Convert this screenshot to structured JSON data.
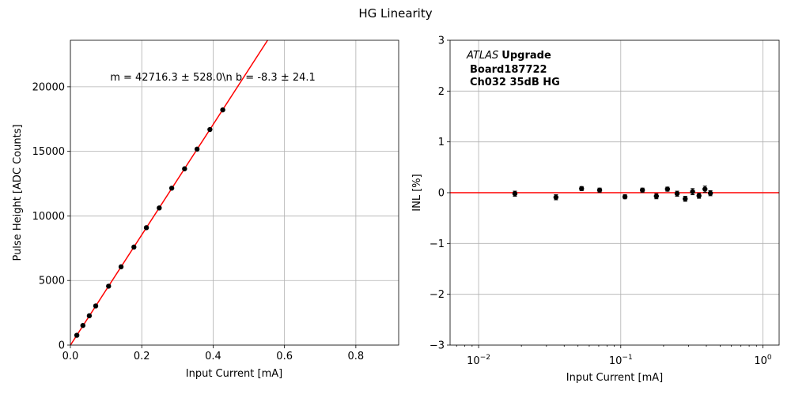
{
  "figure": {
    "title": "HG Linearity"
  },
  "chart_data": [
    {
      "type": "scatter",
      "xlabel": "Input Current [mA]",
      "ylabel": "Pulse Height [ADC Counts]",
      "xlim": [
        0,
        0.92
      ],
      "ylim": [
        0,
        23600
      ],
      "xscale": "linear",
      "grid": true,
      "xticks": [
        {
          "value": 0.0,
          "label": "0.0"
        },
        {
          "value": 0.2,
          "label": "0.2"
        },
        {
          "value": 0.4,
          "label": "0.4"
        },
        {
          "value": 0.6,
          "label": "0.6"
        },
        {
          "value": 0.8,
          "label": "0.8"
        }
      ],
      "yticks": [
        {
          "value": 0,
          "label": "0"
        },
        {
          "value": 5000,
          "label": "5000"
        },
        {
          "value": 10000,
          "label": "10000"
        },
        {
          "value": 15000,
          "label": "15000"
        },
        {
          "value": 20000,
          "label": "20000"
        }
      ],
      "annotation": "m = 42716.3 ± 528.0\\n b = -8.3 ± 24.1",
      "series": [
        {
          "kind": "points",
          "color": "#000000",
          "x": [
            0.018,
            0.035,
            0.053,
            0.071,
            0.107,
            0.142,
            0.178,
            0.213,
            0.249,
            0.284,
            0.32,
            0.355,
            0.391,
            0.427
          ],
          "y": [
            760,
            1520,
            2270,
            3030,
            4560,
            6060,
            7590,
            9090,
            10620,
            12150,
            13650,
            15170,
            16690,
            18210
          ]
        },
        {
          "kind": "line",
          "color": "#ff0000",
          "x": [
            0.0,
            0.553
          ],
          "y": [
            -8.3,
            23614
          ]
        }
      ]
    },
    {
      "type": "scatter",
      "xlabel": "Input Current [mA]",
      "ylabel": "INL [%]",
      "xlim": [
        0.0063,
        1.3
      ],
      "ylim": [
        -3,
        3
      ],
      "xscale": "log",
      "grid": true,
      "xticks": [
        {
          "value": 0.01,
          "base": "10",
          "exp": "−2"
        },
        {
          "value": 0.1,
          "base": "10",
          "exp": "−1"
        },
        {
          "value": 1,
          "base": "10",
          "exp": "0"
        }
      ],
      "yticks": [
        {
          "value": -3,
          "label": "−3"
        },
        {
          "value": -2,
          "label": "−2"
        },
        {
          "value": -1,
          "label": "−1"
        },
        {
          "value": 0,
          "label": "0"
        },
        {
          "value": 1,
          "label": "1"
        },
        {
          "value": 2,
          "label": "2"
        },
        {
          "value": 3,
          "label": "3"
        }
      ],
      "text": {
        "experiment_italic": "ATLAS",
        "experiment_bold": "Upgrade",
        "board": "Board187722",
        "channel": "Ch032 35dB HG"
      },
      "series": [
        {
          "kind": "errorbar",
          "color": "#000000",
          "x": [
            0.018,
            0.035,
            0.053,
            0.071,
            0.107,
            0.142,
            0.178,
            0.213,
            0.249,
            0.284,
            0.32,
            0.355,
            0.391,
            0.427
          ],
          "y": [
            -0.02,
            -0.09,
            0.08,
            0.05,
            -0.08,
            0.05,
            -0.07,
            0.07,
            -0.02,
            -0.12,
            0.02,
            -0.06,
            0.07,
            -0.01
          ],
          "yerr": [
            0.05,
            0.05,
            0.04,
            0.04,
            0.04,
            0.04,
            0.05,
            0.04,
            0.05,
            0.05,
            0.06,
            0.05,
            0.06,
            0.05
          ]
        },
        {
          "kind": "hline",
          "color": "#ff0000",
          "y": 0
        }
      ]
    }
  ]
}
